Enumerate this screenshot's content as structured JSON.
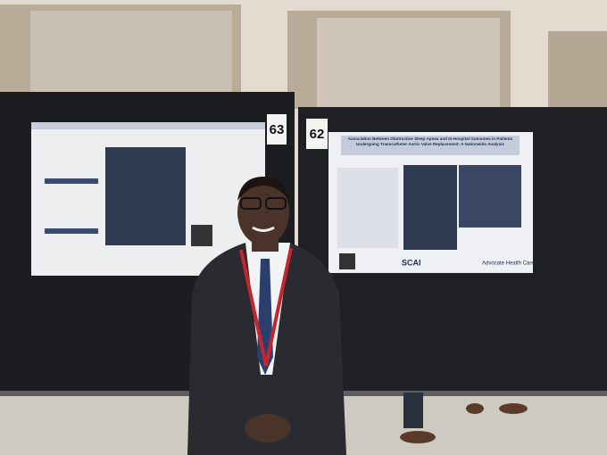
{
  "photo": {
    "board_numbers": [
      "63",
      "62"
    ],
    "posters": [
      {
        "title": "Association Between Obstructive Sleep Apnea and In-Hospital Outcomes in Patients Undergoing Transcatheter Aortic Valve Replacement: A Nationwide Analysis",
        "logos": [
          "SCAI",
          "Advocate Health Care"
        ]
      }
    ]
  }
}
